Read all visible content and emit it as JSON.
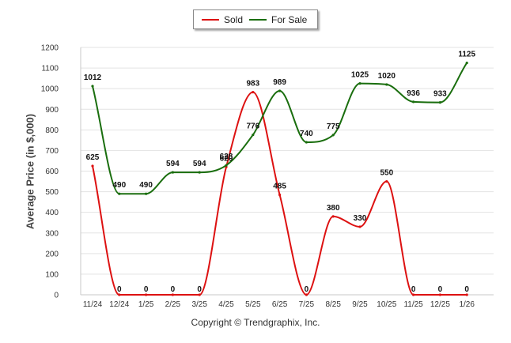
{
  "chart_data": {
    "type": "line",
    "title": "",
    "xlabel": "",
    "ylabel": "Average Price (in $,000)",
    "ylim": [
      0,
      1200
    ],
    "yticks": [
      0,
      100,
      200,
      300,
      400,
      500,
      600,
      700,
      800,
      900,
      1000,
      1100,
      1200
    ],
    "categories": [
      "11/24",
      "12/24",
      "1/25",
      "2/25",
      "3/25",
      "4/25",
      "5/25",
      "6/25",
      "7/25",
      "8/25",
      "9/25",
      "10/25",
      "11/25",
      "12/25",
      "1/26"
    ],
    "grid": true,
    "legend_position": "top-center",
    "series": [
      {
        "name": "Sold",
        "color": "#dd1111",
        "values": [
          625,
          0,
          0,
          0,
          0,
          620,
          983,
          485,
          0,
          380,
          330,
          550,
          0,
          0,
          0
        ],
        "labels": [
          "625",
          "0",
          "0",
          "0",
          "0",
          "620",
          "983",
          "485",
          "0",
          "380",
          "330",
          "550",
          "0",
          "0",
          "0"
        ]
      },
      {
        "name": "For Sale",
        "color": "#1a6e0e",
        "values": [
          1012,
          490,
          490,
          594,
          594,
          628,
          776,
          989,
          740,
          775,
          1025,
          1020,
          936,
          933,
          1125
        ],
        "labels": [
          "1012",
          "490",
          "490",
          "594",
          "594",
          "628",
          "776",
          "989",
          "740",
          "775",
          "1025",
          "1020",
          "936",
          "933",
          "1125"
        ]
      }
    ]
  },
  "copyright": "Copyright © Trendgraphix, Inc."
}
